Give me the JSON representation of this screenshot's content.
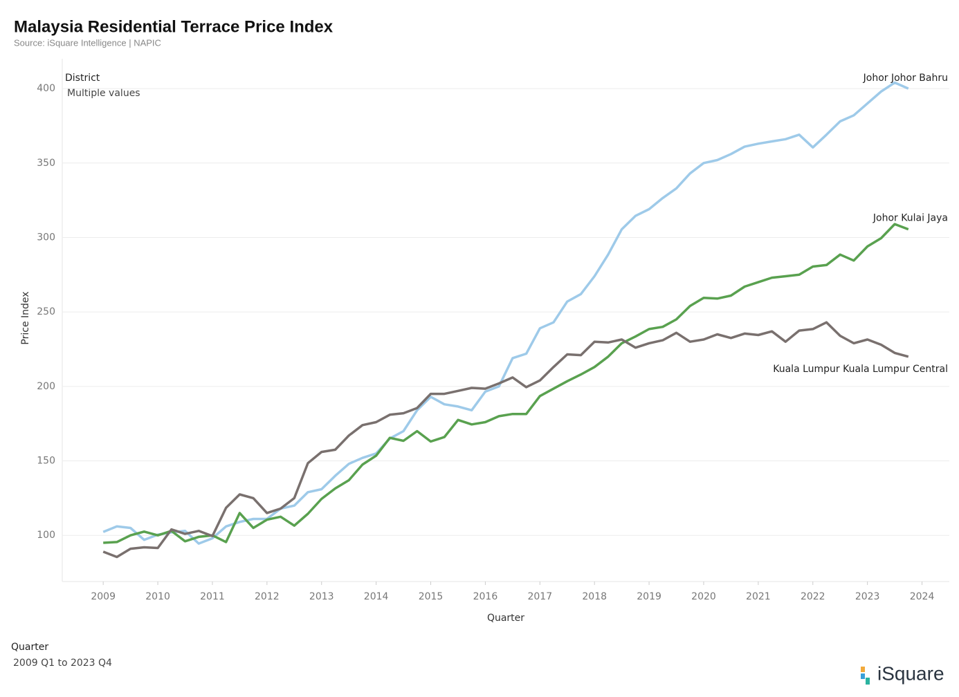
{
  "chart_data": {
    "type": "line",
    "title": "Malaysia Residential Terrace Price Index",
    "subtitle": "Source: iSquare Intelligence | NAPIC",
    "y_label": "Price Index",
    "x_label": "Quarter",
    "filter_district_title": "District",
    "filter_district_value": "Multiple values",
    "filter_quarter_title": "Quarter",
    "filter_quarter_value": "2009 Q1 to 2023 Q4",
    "logo": "iSquare",
    "grid": true,
    "xlim": [
      2008.25,
      2024.5
    ],
    "xticks": [
      2009,
      2010,
      2011,
      2012,
      2013,
      2014,
      2015,
      2016,
      2017,
      2018,
      2019,
      2020,
      2021,
      2022,
      2023,
      2024
    ],
    "ylim": [
      69,
      420
    ],
    "yticks": [
      100,
      150,
      200,
      250,
      300,
      350,
      400
    ],
    "x": [
      2009,
      2009.25,
      2009.5,
      2009.75,
      2010,
      2010.25,
      2010.5,
      2010.75,
      2011,
      2011.25,
      2011.5,
      2011.75,
      2012,
      2012.25,
      2012.5,
      2012.75,
      2013,
      2013.25,
      2013.5,
      2013.75,
      2014,
      2014.25,
      2014.5,
      2014.75,
      2015,
      2015.25,
      2015.5,
      2015.75,
      2016,
      2016.25,
      2016.5,
      2016.75,
      2017,
      2017.25,
      2017.5,
      2017.75,
      2018,
      2018.25,
      2018.5,
      2018.75,
      2019,
      2019.25,
      2019.5,
      2019.75,
      2020,
      2020.25,
      2020.5,
      2020.75,
      2021,
      2021.25,
      2021.5,
      2021.75,
      2022,
      2022.25,
      2022.5,
      2022.75,
      2023,
      2023.25,
      2023.5,
      2023.75
    ],
    "series": [
      {
        "name": "Johor Johor Bahru",
        "color": "#9ecae9",
        "values": [
          102.3,
          106,
          105,
          97,
          100.5,
          102,
          103,
          94.5,
          98,
          106,
          109,
          111,
          111,
          118,
          120,
          129,
          131,
          140,
          148,
          152,
          155,
          165,
          170,
          184,
          193,
          188,
          186.5,
          184,
          196.5,
          200,
          219,
          222,
          239,
          243,
          257,
          262,
          274,
          288.5,
          305.5,
          314.5,
          319,
          326.5,
          333,
          343,
          350,
          352,
          356,
          361,
          363,
          364.5,
          366,
          369,
          360.5,
          369,
          378,
          382,
          390,
          398,
          404,
          400
        ]
      },
      {
        "name": "Johor Kulai Jaya",
        "color": "#59a14f",
        "values": [
          95,
          95.5,
          100,
          102.5,
          100,
          103,
          96,
          99,
          100,
          95.5,
          115,
          105,
          110.5,
          112.5,
          106.5,
          114.5,
          124.5,
          131.5,
          137,
          147.5,
          153.5,
          165.5,
          163.5,
          170,
          163,
          166,
          177.5,
          174.5,
          176,
          180,
          181.5,
          181.5,
          193.5,
          198.5,
          203.5,
          208,
          213,
          220,
          229,
          233.5,
          238.5,
          240,
          245,
          254,
          259.5,
          259,
          261,
          267,
          270,
          273,
          274,
          275,
          280.5,
          281.5,
          288.5,
          284.5,
          294,
          299.5,
          309,
          305.5
        ]
      },
      {
        "name": "Kuala Lumpur Kuala Lumpur Central",
        "color": "#79706e",
        "values": [
          89,
          85.5,
          91,
          92,
          91.5,
          104,
          101,
          103,
          99.5,
          118.5,
          127.5,
          125,
          115,
          118,
          125,
          148.5,
          156,
          157.5,
          167,
          174,
          176,
          181,
          182,
          185.5,
          195,
          195,
          197,
          199,
          198.5,
          202,
          206,
          199.5,
          204,
          213,
          221.5,
          221,
          230,
          229.5,
          231.5,
          226,
          229,
          231,
          236,
          230,
          231.5,
          235,
          232.5,
          235.5,
          234.5,
          237,
          230,
          237.5,
          238.5,
          243,
          234,
          229,
          231.5,
          228,
          222.5,
          220
        ]
      }
    ]
  }
}
